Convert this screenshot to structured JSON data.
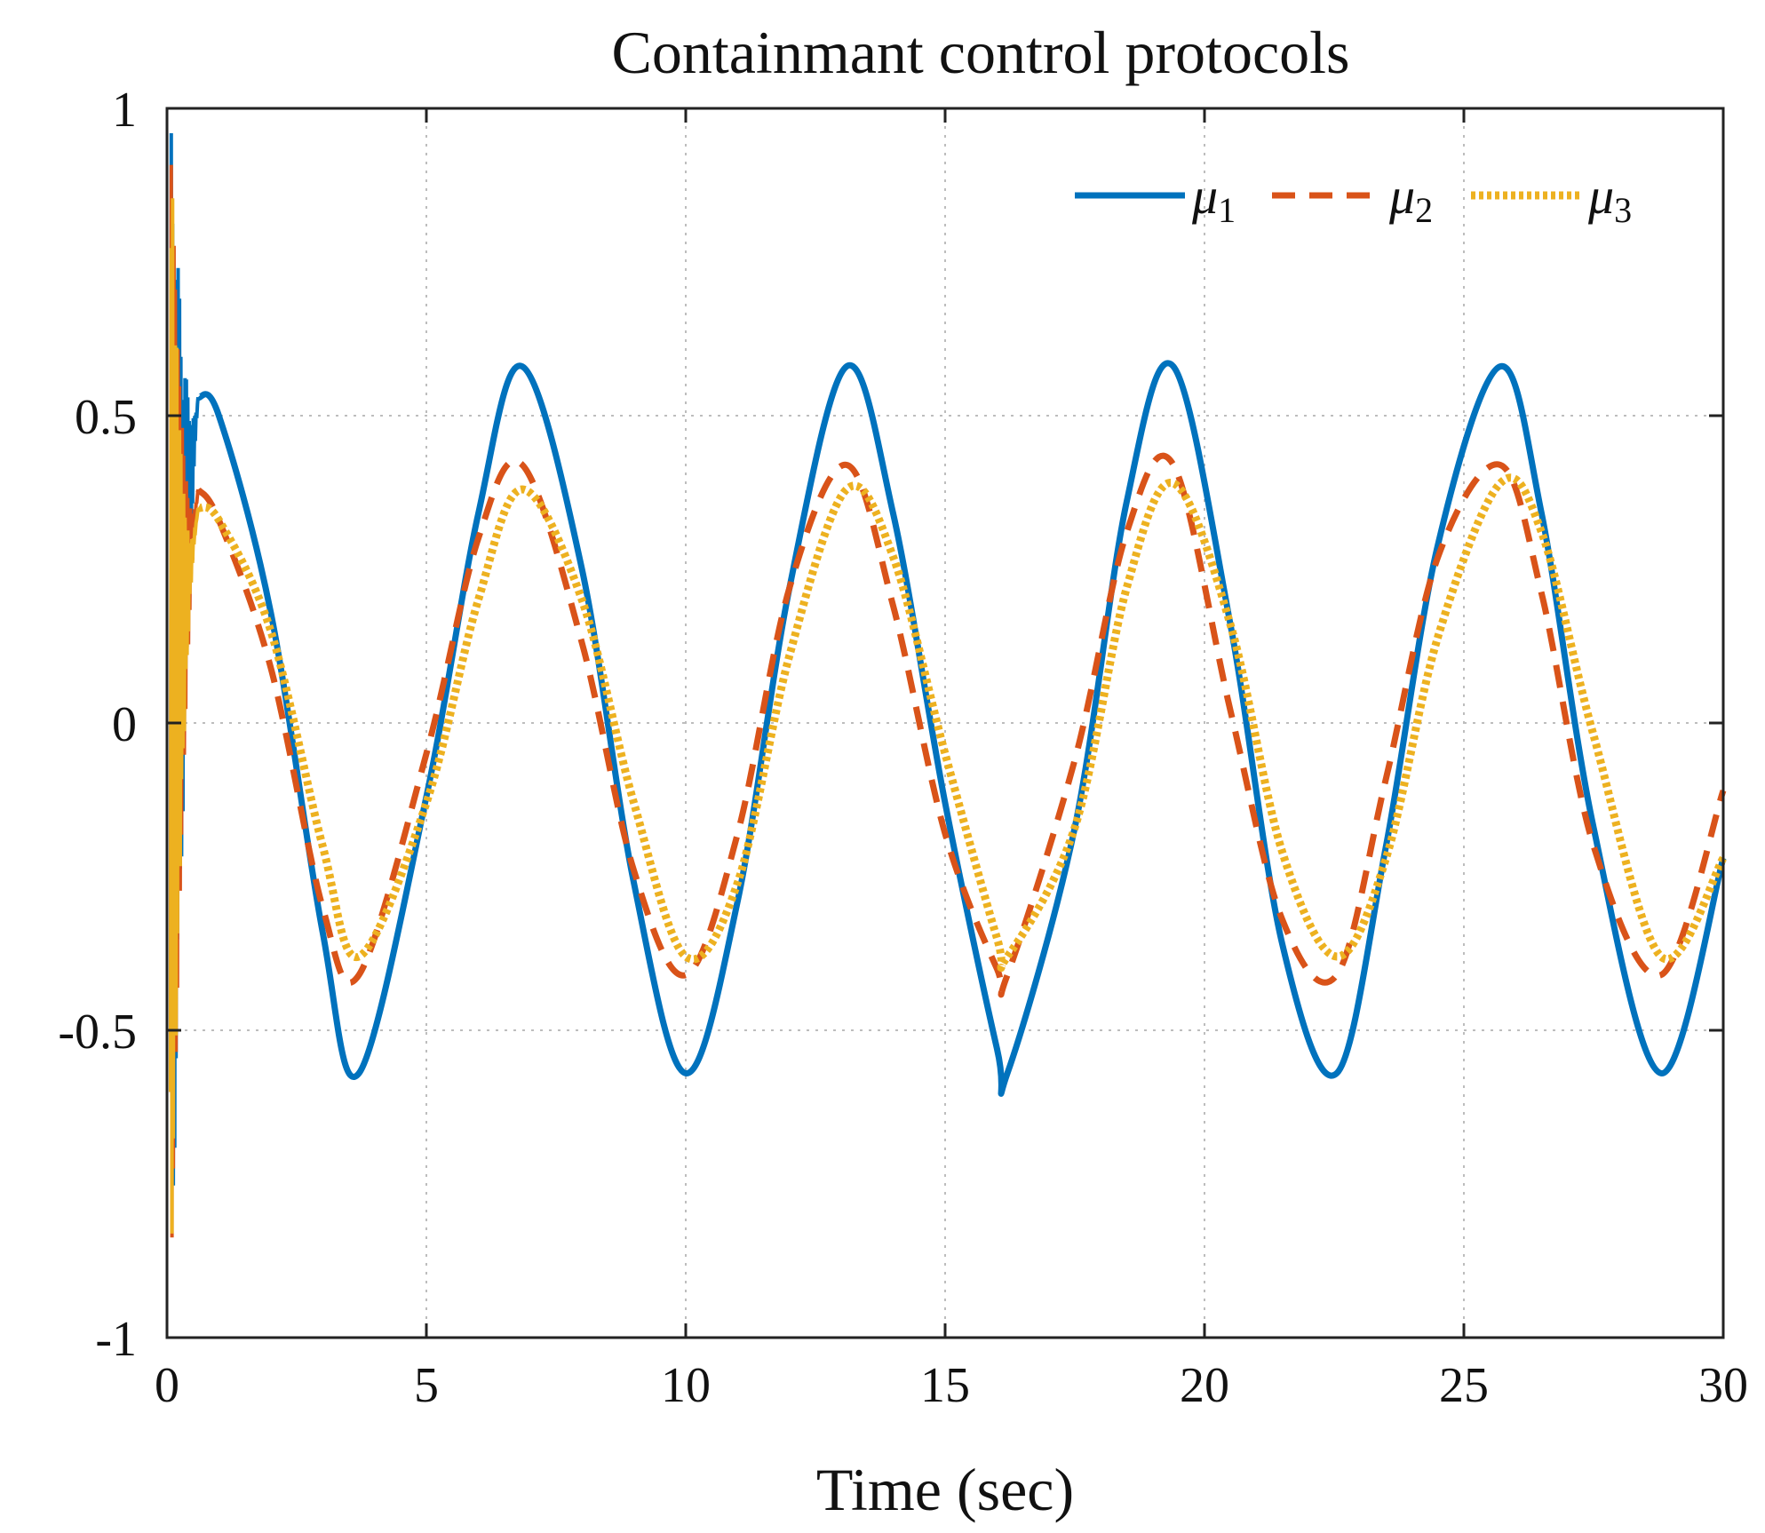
{
  "chart_data": {
    "type": "line",
    "title": "Containmant control protocols",
    "xlabel": "Time (sec)",
    "ylabel": "",
    "xlim": [
      0,
      30
    ],
    "ylim": [
      -1,
      1
    ],
    "xticks": [
      0,
      5,
      10,
      15,
      20,
      25,
      30
    ],
    "xtick_labels": [
      "0",
      "5",
      "10",
      "15",
      "20",
      "25",
      "30"
    ],
    "yticks": [
      -1,
      -0.5,
      0,
      0.5,
      1
    ],
    "ytick_labels": [
      "-1",
      "-0.5",
      "0",
      "0.5",
      "1"
    ],
    "grid": true,
    "legend_position": "top-right",
    "legend_orientation": "horizontal",
    "x": [
      0.6,
      1.0,
      2.0,
      3.0,
      3.7,
      5.0,
      6.0,
      6.85,
      8.0,
      9.0,
      10.0,
      11.0,
      12.0,
      13.1,
      14.0,
      15.0,
      16.0,
      16.2,
      17.5,
      18.5,
      19.4,
      20.5,
      21.5,
      22.55,
      23.5,
      24.5,
      25.7,
      26.5,
      27.5,
      28.8,
      30.0
    ],
    "series": [
      {
        "name": "μ1",
        "symbol": "μ",
        "subscript": "1",
        "style": "solid",
        "color": "#0072BD",
        "values": [
          0.53,
          0.5,
          0.18,
          -0.34,
          -0.57,
          -0.12,
          0.34,
          0.58,
          0.25,
          -0.26,
          -0.57,
          -0.29,
          0.22,
          0.58,
          0.34,
          -0.13,
          -0.53,
          -0.57,
          -0.17,
          0.36,
          0.58,
          0.16,
          -0.36,
          -0.57,
          -0.2,
          0.29,
          0.58,
          0.34,
          -0.17,
          -0.57,
          -0.22
        ]
      },
      {
        "name": "μ2",
        "symbol": "μ",
        "subscript": "2",
        "style": "dashed",
        "color": "#D95319",
        "values": [
          0.38,
          0.33,
          0.09,
          -0.3,
          -0.41,
          -0.05,
          0.3,
          0.42,
          0.13,
          -0.24,
          -0.41,
          -0.18,
          0.22,
          0.42,
          0.19,
          -0.18,
          -0.4,
          -0.41,
          -0.06,
          0.31,
          0.42,
          0.02,
          -0.32,
          -0.41,
          -0.09,
          0.27,
          0.42,
          0.21,
          -0.2,
          -0.41,
          -0.11
        ]
      },
      {
        "name": "μ3",
        "symbol": "μ",
        "subscript": "3",
        "style": "dotted",
        "color": "#EDB120",
        "values": [
          0.35,
          0.33,
          0.15,
          -0.2,
          -0.38,
          -0.13,
          0.2,
          0.38,
          0.2,
          -0.13,
          -0.38,
          -0.26,
          0.11,
          0.38,
          0.27,
          -0.05,
          -0.35,
          -0.38,
          -0.17,
          0.22,
          0.39,
          0.16,
          -0.21,
          -0.38,
          -0.22,
          0.14,
          0.39,
          0.31,
          -0.02,
          -0.38,
          -0.22
        ]
      }
    ],
    "transient": {
      "description": "high-frequency oscillation near t = 0",
      "x_range": [
        0,
        0.6
      ],
      "y_range": [
        -1,
        1
      ]
    }
  }
}
